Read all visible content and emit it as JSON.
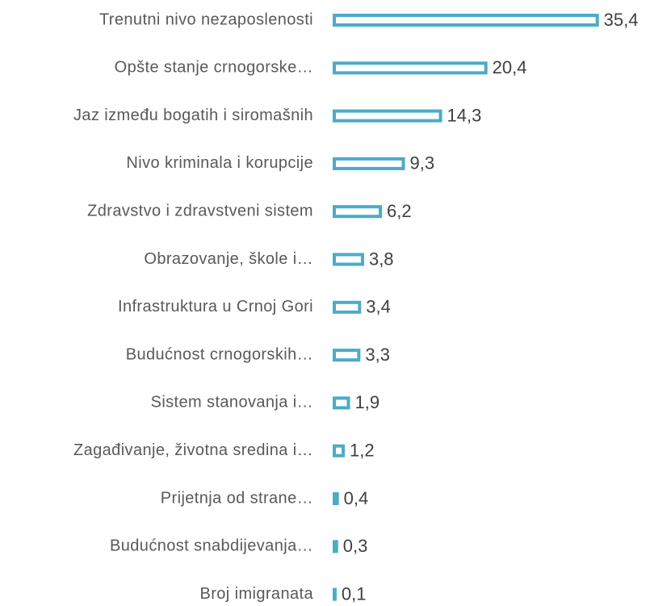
{
  "chart_data": {
    "type": "hbar",
    "categories": [
      "Trenutni nivo nezaposlenosti",
      "Opšte stanje crnogorske…",
      "Jaz između bogatih i siromašnih",
      "Nivo kriminala i korupcije",
      "Zdravstvo i zdravstveni sistem",
      "Obrazovanje, škole i…",
      "Infrastruktura u Crnoj Gori",
      "Budućnost crnogorskih…",
      "Sistem stanovanja i…",
      "Zagađivanje, životna sredina i…",
      "Prijetnja od strane…",
      "Budućnost snabdijevanja…",
      "Broj imigranata"
    ],
    "values": [
      35.4,
      20.4,
      14.3,
      9.3,
      6.2,
      3.8,
      3.4,
      3.3,
      1.9,
      1.2,
      0.4,
      0.3,
      0.1
    ],
    "value_labels": [
      "35,4",
      "20,4",
      "14,3",
      "9,3",
      "6,2",
      "3,8",
      "3,4",
      "3,3",
      "1,9",
      "1,2",
      "0,4",
      "0,3",
      "0,1"
    ],
    "color": "#4bacc6",
    "xlim": [
      0,
      40
    ]
  }
}
